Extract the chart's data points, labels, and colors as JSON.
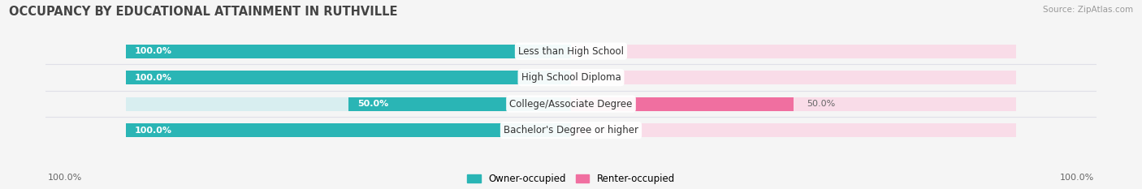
{
  "title": "OCCUPANCY BY EDUCATIONAL ATTAINMENT IN RUTHVILLE",
  "source": "Source: ZipAtlas.com",
  "categories": [
    "Less than High School",
    "High School Diploma",
    "College/Associate Degree",
    "Bachelor's Degree or higher"
  ],
  "owner_values": [
    100.0,
    100.0,
    50.0,
    100.0
  ],
  "renter_values": [
    0.0,
    0.0,
    50.0,
    0.0
  ],
  "owner_color": "#2ab5b5",
  "renter_color": "#f06fa0",
  "owner_bg_color": "#d8eef0",
  "renter_bg_color": "#f9dce8",
  "separator_color": "#e0e0e8",
  "bg_color": "#f5f5f5",
  "label_left_color": "#ffffff",
  "label_right_color": "#666666",
  "title_color": "#444444",
  "source_color": "#999999",
  "legend_owner": "Owner-occupied",
  "legend_renter": "Renter-occupied",
  "bottom_left_label": "100.0%",
  "bottom_right_label": "100.0%",
  "max_val": 100.0,
  "cat_label_fontsize": 8.5,
  "val_label_fontsize": 8.0,
  "title_fontsize": 10.5,
  "source_fontsize": 7.5
}
